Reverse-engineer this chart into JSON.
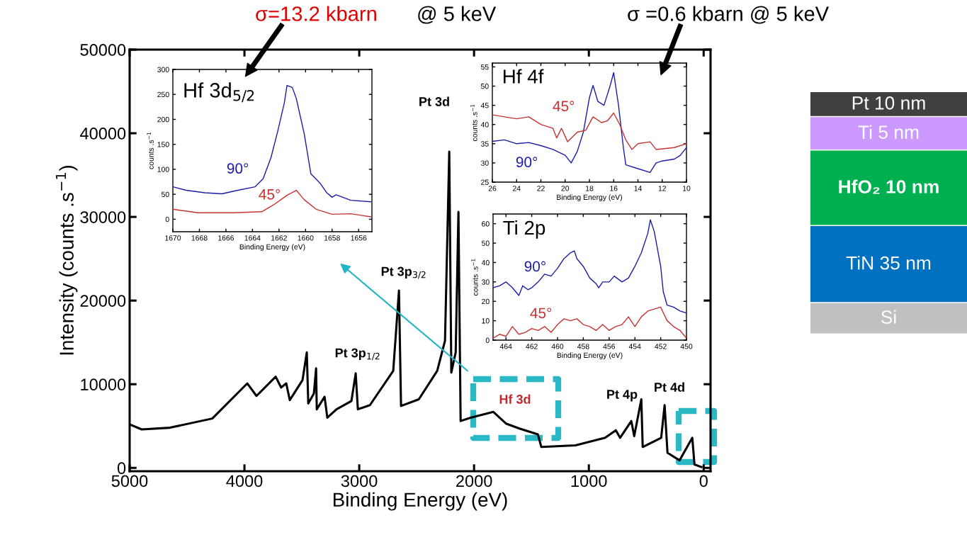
{
  "chart_data": [
    {
      "type": "line",
      "xlabel": "Binding Energy (eV)",
      "ylabel": "Intensity (counts .s$^{−1}$)",
      "xlim": [
        5000,
        -60
      ],
      "ylim": [
        -400,
        50000
      ],
      "xticks": [
        5000,
        4000,
        3000,
        2000,
        1000,
        0
      ],
      "yticks": [
        0,
        10000,
        20000,
        30000,
        40000,
        50000
      ],
      "series": [
        {
          "color": "#000000",
          "x": [
            5000,
            4895,
            4650,
            4280,
            3975,
            3895,
            3728,
            3680,
            3636,
            3605,
            3494,
            3457,
            3444,
            3395,
            3376,
            3370,
            3302,
            3278,
            3198,
            3068,
            3031,
            3012,
            2907,
            2704,
            2654,
            2636,
            2481,
            2321,
            2253,
            2216,
            2198,
            2160,
            2136,
            2117,
            2031,
            1833,
            1722,
            1605,
            1444,
            1414,
            1117,
            858,
            765,
            728,
            630,
            605,
            543,
            531,
            370,
            340,
            315,
            210,
            99,
            80,
            20
          ],
          "values": [
            5200,
            4600,
            4800,
            5900,
            10100,
            8600,
            10900,
            9600,
            10100,
            8100,
            10500,
            13800,
            7700,
            8900,
            11900,
            7000,
            8500,
            6000,
            7000,
            8000,
            11300,
            7000,
            7500,
            11600,
            21200,
            7400,
            8200,
            11600,
            15200,
            37800,
            11400,
            13800,
            30600,
            5600,
            6000,
            6700,
            5300,
            4700,
            4000,
            2500,
            2700,
            3600,
            4500,
            3600,
            5600,
            3800,
            8200,
            2500,
            3600,
            7500,
            1800,
            900,
            3600,
            400,
            100
          ]
        }
      ],
      "annotations": [
        "Pt 3d",
        "Pt 3p$_{3/2}$",
        "Pt 3p$_{1/2}$",
        "Hf 3d",
        "Pt 4p",
        "Pt 4d",
        "σ=13.2 kbarn",
        "@ 5 keV",
        "σ =0.6 kbarn @ 5 keV"
      ]
    },
    {
      "type": "line",
      "title": "Hf 3d$_{5/2}$",
      "xlabel": "Binding Energy (eV)",
      "ylabel": "counts .s$^{−1}$",
      "xlim": [
        1670,
        1655
      ],
      "ylim": [
        -25,
        300
      ],
      "xticks": [
        1670,
        1668,
        1666,
        1664,
        1662,
        1660,
        1658,
        1656
      ],
      "yticks": [
        0,
        50,
        100,
        150,
        200,
        250,
        300
      ],
      "series": [
        {
          "name": "90°",
          "color": "#1c1ca8",
          "x": [
            1670,
            1669,
            1667.6,
            1666.3,
            1665.1,
            1663.8,
            1663.2,
            1662.6,
            1662.1,
            1661.6,
            1661.4,
            1661,
            1660.7,
            1660.1,
            1659.6,
            1658.9,
            1658.4,
            1658,
            1657.7,
            1656.6,
            1655.1
          ],
          "values": [
            65,
            58,
            53,
            51,
            58,
            65,
            81,
            124,
            176,
            233,
            268,
            264,
            242,
            171,
            91,
            72,
            53,
            44,
            49,
            38,
            35
          ]
        },
        {
          "name": "45°",
          "color": "#c83232",
          "x": [
            1670,
            1668.1,
            1665.4,
            1663.3,
            1662.4,
            1661.4,
            1660.7,
            1660.1,
            1659.2,
            1658,
            1656.6,
            1655.1
          ],
          "values": [
            20,
            13,
            13,
            15,
            29,
            48,
            58,
            39,
            20,
            10,
            11,
            5
          ]
        }
      ]
    },
    {
      "type": "line",
      "title": "Hf 4f",
      "xlabel": "Binding Energy (eV)",
      "ylabel": "counts .s$^{−1}$",
      "xlim": [
        26,
        10
      ],
      "ylim": [
        25,
        56
      ],
      "xticks": [
        26,
        24,
        22,
        20,
        18,
        16,
        14,
        12,
        10
      ],
      "yticks": [
        25,
        30,
        35,
        40,
        45,
        50,
        55
      ],
      "series": [
        {
          "name": "90°",
          "color": "#1c1ca8",
          "x": [
            26,
            25,
            24,
            23,
            22,
            21,
            20,
            19.5,
            19,
            18.5,
            18,
            17.7,
            17.3,
            16.8,
            16.3,
            16,
            15.6,
            15.2,
            15,
            14,
            13,
            12.5,
            12,
            11,
            10.5,
            10
          ],
          "values": [
            35.6,
            36,
            35,
            35.3,
            34.5,
            33.5,
            32,
            30,
            33,
            38,
            47,
            50.2,
            46,
            45,
            50,
            53.5,
            45,
            34,
            29.5,
            28.5,
            27.5,
            30,
            30.5,
            31,
            32,
            34
          ]
        },
        {
          "name": "45°",
          "color": "#c83232",
          "x": [
            26,
            25,
            24,
            23,
            22,
            21,
            20.7,
            20.3,
            19.8,
            19,
            18.3,
            17.7,
            17,
            16.5,
            16,
            15.5,
            15,
            14.5,
            14,
            13,
            12.5,
            11,
            10
          ],
          "values": [
            42.5,
            42,
            41.5,
            42,
            40,
            39,
            36.5,
            39,
            35.5,
            38,
            38.5,
            42,
            40.5,
            41,
            43,
            40,
            36,
            33.5,
            35,
            35.5,
            33.5,
            34,
            35
          ]
        }
      ]
    },
    {
      "type": "line",
      "title": "Ti 2p",
      "xlabel": "Binding Energy (eV)",
      "ylabel": "counts .s$^{−1}$",
      "xlim": [
        465,
        450
      ],
      "ylim": [
        0,
        65
      ],
      "xticks": [
        464,
        462,
        460,
        458,
        456,
        454,
        452,
        450
      ],
      "yticks": [
        0,
        10,
        20,
        30,
        40,
        50,
        60
      ],
      "series": [
        {
          "name": "90°",
          "color": "#1c1ca8",
          "x": [
            465,
            464.5,
            464,
            463.5,
            463,
            462.7,
            462.3,
            462,
            461.5,
            461,
            460.5,
            460,
            459.5,
            459,
            458.7,
            458.5,
            458,
            457.5,
            457,
            456.8,
            456.5,
            456,
            455.6,
            455,
            454.5,
            454,
            453.5,
            453,
            452.8,
            452.5,
            452,
            451.8,
            451.5,
            451,
            450.5,
            450
          ],
          "values": [
            27,
            28,
            30,
            27,
            23,
            28,
            26,
            27,
            30,
            34,
            33,
            37,
            42,
            45,
            46,
            42,
            38,
            32,
            29,
            27,
            30,
            30,
            33,
            30,
            32,
            38,
            45,
            55,
            62,
            56,
            38,
            25,
            18,
            17,
            15,
            14
          ]
        },
        {
          "name": "45°",
          "color": "#c83232",
          "x": [
            465,
            464.5,
            464,
            463.5,
            463,
            462.5,
            462,
            461.5,
            461,
            460.5,
            460,
            459.5,
            459,
            458.5,
            458,
            457.5,
            457,
            456.5,
            456,
            455.5,
            455,
            454.5,
            454,
            453.5,
            453,
            452.5,
            452,
            451.5,
            451,
            450.5,
            450
          ],
          "values": [
            1,
            3,
            2,
            7,
            3,
            4,
            6,
            5,
            7,
            4,
            8,
            11,
            10,
            11,
            8,
            7,
            5,
            8,
            5,
            7,
            8,
            12,
            7,
            12,
            15,
            16,
            17,
            10,
            7,
            5,
            1
          ]
        }
      ]
    },
    {
      "type": "other",
      "annotations": [
        "Pt 10 nm",
        "Ti 5 nm",
        "HfO₂ 10 nm",
        "TiN 35 nm",
        "Si"
      ],
      "colors": [
        "#404040",
        "#cc99ff",
        "#00b050",
        "#0070c0",
        "#c0c0c0"
      ]
    }
  ]
}
